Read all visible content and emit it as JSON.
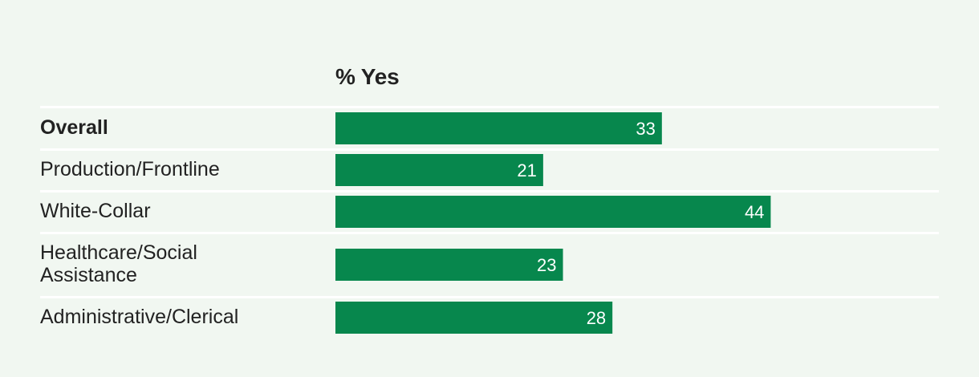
{
  "chart_data": {
    "type": "bar",
    "orientation": "horizontal",
    "column_header": "% Yes",
    "categories": [
      "Overall",
      "Production/Frontline",
      "White-Collar",
      "Healthcare/Social Assistance",
      "Administrative/Clerical"
    ],
    "category_display": [
      [
        "Overall"
      ],
      [
        "Production/Frontline"
      ],
      [
        "White-Collar"
      ],
      [
        "Healthcare/Social",
        "Assistance"
      ],
      [
        "Administrative/Clerical"
      ]
    ],
    "bold_categories": [
      "Overall"
    ],
    "values": [
      33,
      21,
      44,
      23,
      28
    ],
    "xlim": [
      0,
      61
    ],
    "grid": false,
    "colors": {
      "bar": "#07874d",
      "value_label": "#ffffff",
      "divider": "#ffffff",
      "background": "#f1f7f1",
      "text": "#222222"
    }
  }
}
